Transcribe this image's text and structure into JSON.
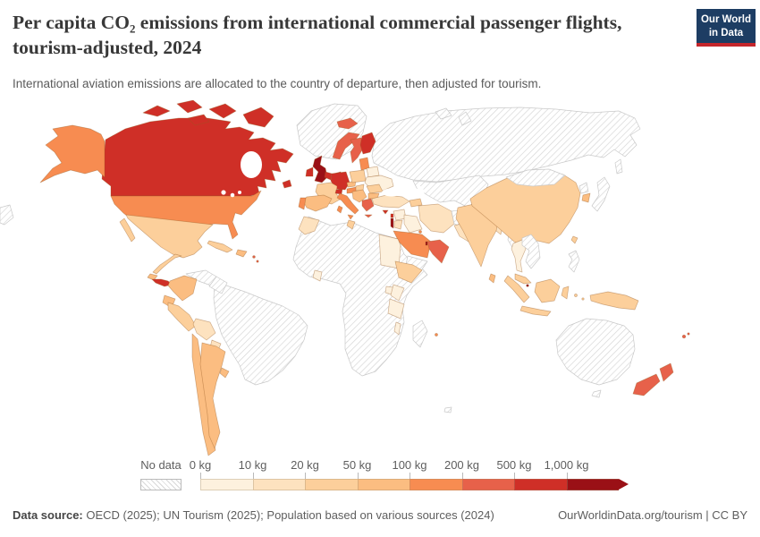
{
  "header": {
    "title": "Per capita CO₂ emissions from international commercial passenger flights, tourism-adjusted, 2024",
    "subtitle": "International aviation emissions are allocated to the country of departure, then adjusted for tourism.",
    "logo_line1": "Our World",
    "logo_line2": "in Data",
    "logo_bg": "#1d3d63",
    "logo_red": "#c5262b"
  },
  "legend": {
    "no_data_label": "No data",
    "ticks": [
      "0 kg",
      "10 kg",
      "20 kg",
      "50 kg",
      "100 kg",
      "200 kg",
      "500 kg",
      "1,000 kg"
    ]
  },
  "footer": {
    "source_label": "Data source:",
    "source_text": " OECD (2025); UN Tourism (2025); Population based on various sources (2024)",
    "link_text": "OurWorldinData.org/tourism | CC BY"
  },
  "chart_data": {
    "type": "choropleth-map",
    "title": "Per capita CO₂ emissions from international commercial passenger flights, tourism-adjusted",
    "year": 2024,
    "unit": "kg",
    "legend_position": "bottom",
    "legend_bins": [
      {
        "range": "0-10",
        "color": "#fdf1de"
      },
      {
        "range": "10-20",
        "color": "#fde2bf"
      },
      {
        "range": "20-50",
        "color": "#fccf9b"
      },
      {
        "range": "50-100",
        "color": "#fbbd81"
      },
      {
        "range": "100-200",
        "color": "#f78c51"
      },
      {
        "range": "200-500",
        "color": "#e7614a"
      },
      {
        "range": "500-1000",
        "color": "#cf2f27"
      },
      {
        "range": "1000+",
        "color": "#9a1016"
      }
    ],
    "no_data_style": "diagonal-hatch",
    "countries": {
      "canada": "500-1000",
      "greenland": "no-data",
      "usa": "100-200",
      "mexico": "20-50",
      "central-america": "20-50",
      "costa-rica": "50-100",
      "panama": "500-1000",
      "cuba": "20-50",
      "hispaniola": "50-100",
      "caribbean": "200-500",
      "colombia": "50-100",
      "venezuela": "no-data",
      "guyana": "no-data",
      "ecuador": "50-100",
      "peru": "20-50",
      "bolivia": "10-20",
      "paraguay": "10-20",
      "chile": "50-100",
      "argentina": "50-100",
      "uruguay": "50-100",
      "brazil": "no-data",
      "kerguelen": "no-data",
      "iceland": "200-500",
      "uk": "1000+",
      "ireland": "500-1000",
      "norway": "200-500",
      "sweden": "200-500",
      "finland": "500-1000",
      "denmark": "500-1000",
      "baltics": "100-200",
      "germany": "500-1000",
      "benelux": "500-1000",
      "france": "20-50",
      "spain": "50-100",
      "portugal": "100-200",
      "italy": "100-200",
      "switzerland": "500-1000",
      "austria": "100-200",
      "czechia": "50-100",
      "poland": "20-50",
      "belarus": "0-10",
      "ukraine": "0-10",
      "romania": "20-50",
      "hungary": "20-50",
      "balkans": "50-100",
      "bulgaria": "50-100",
      "greece": "200-500",
      "turkey": "10-20",
      "cyprus": "500-1000",
      "russia": "no-data",
      "svalbard": "no-data",
      "kazakhstan": "no-data",
      "caucasus": "20-50",
      "syria": "0-10",
      "lebanon": "500-1000",
      "israel": "1000+",
      "jordan": "10-20",
      "iraq": "0-10",
      "iran": "10-20",
      "saudi-arabia": "100-200",
      "kuwait": "100-200",
      "qatar": "1000+",
      "uae-oman": "200-500",
      "yemen": "no-data",
      "afghanistan": "no-data",
      "pakistan": "10-20",
      "egypt": "0-10",
      "morocco": "10-20",
      "tunisia": "20-50",
      "africa": "no-data",
      "ghana": "0-10",
      "ethiopia": "20-50",
      "uganda": "0-10",
      "kenya": "0-10",
      "tanzania": "0-10",
      "malawi": "0-10",
      "madagascar": "no-data",
      "mauritius": "100-200",
      "india": "20-50",
      "sri-lanka": "50-100",
      "bangladesh": "10-20",
      "myanmar": "no-data",
      "china": "20-50",
      "mongolia": "no-data",
      "north-korea": "no-data",
      "south-korea": "50-100",
      "japan": "no-data",
      "taiwan": "20-50",
      "thailand": "0-10",
      "indochina": "no-data",
      "malaysia": "20-50",
      "singapore": "1000+",
      "indonesia": "20-50",
      "philippines": "no-data",
      "new-guinea": "20-50",
      "australia": "no-data",
      "new-zealand": "200-500",
      "fiji": "200-500"
    }
  }
}
